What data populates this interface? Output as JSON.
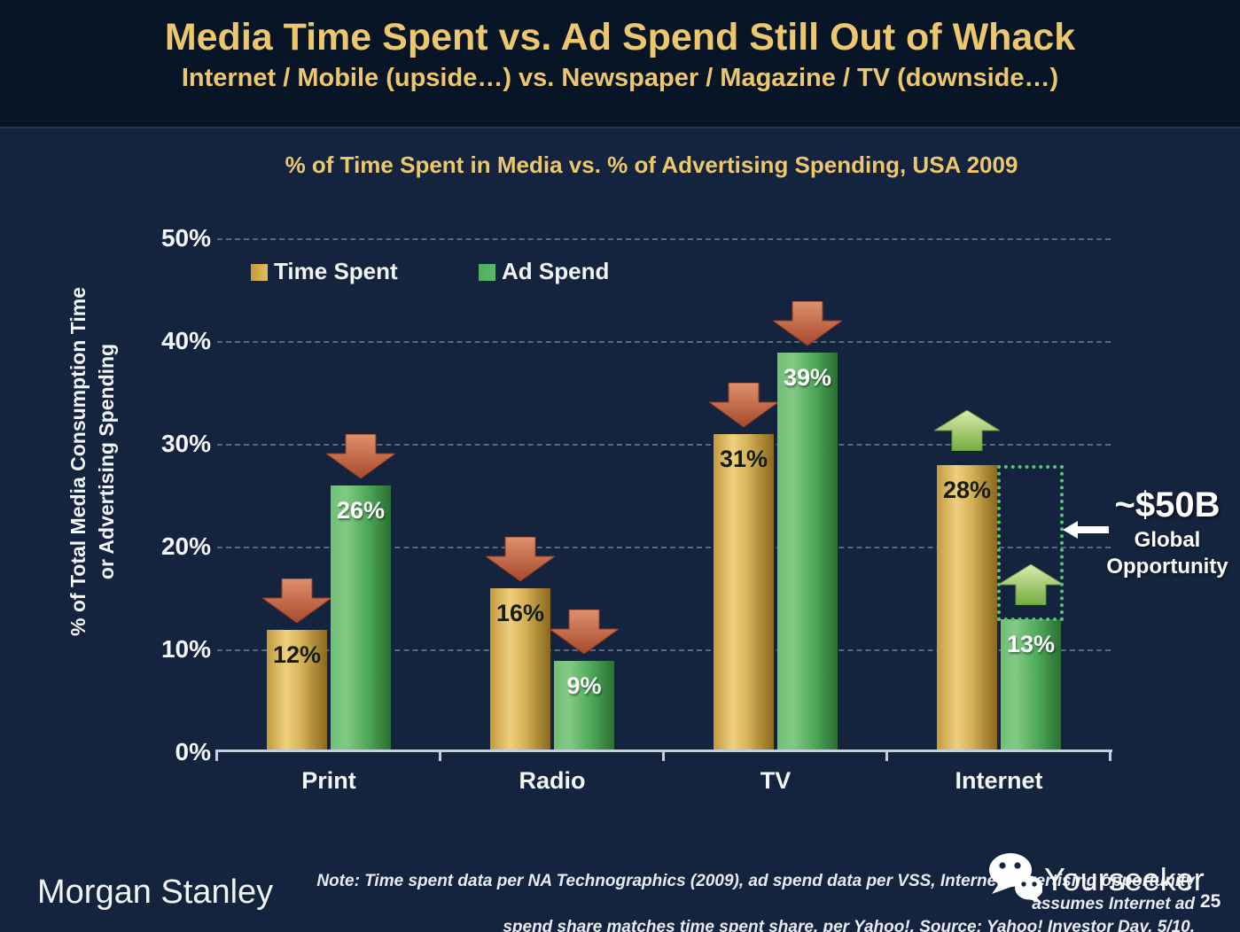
{
  "slide": {
    "title": "Media Time Spent vs. Ad Spend Still Out of Whack",
    "subtitle": "Internet / Mobile (upside…) vs. Newspaper / Magazine / TV (downside…)",
    "brand": "Morgan Stanley",
    "watermark": "Yourseeker",
    "page_number": "25",
    "note_line1": "Note: Time spent data per NA Technographics (2009), ad spend data per VSS, Internet advertising opportunity assumes Internet ad",
    "note_line2": "spend share matches time spent share, per Yahoo!. Source: Yahoo! Investor Day, 5/10."
  },
  "colors": {
    "header_bg": "#081526",
    "body_bg": "#15243e",
    "accent_gold": "#ecc76d",
    "bar_gold_mid": "#edd07e",
    "bar_green_mid": "#4da858",
    "arrow_down_top": "#de906c",
    "arrow_down_bottom": "#a84a2e",
    "arrow_up_top": "#dcebad",
    "arrow_up_bottom": "#74ac40",
    "dotted_box": "#57c373",
    "axis": "#c6cedb",
    "value_dark": "#161d10",
    "value_light": "#ffffff"
  },
  "chart_data": {
    "type": "bar",
    "title": "% of Time Spent in Media vs. % of Advertising Spending, USA 2009",
    "categories": [
      "Print",
      "Radio",
      "TV",
      "Internet"
    ],
    "series": [
      {
        "name": "Time Spent",
        "color_key": "gold",
        "values": [
          12,
          16,
          31,
          28
        ]
      },
      {
        "name": "Ad Spend",
        "color_key": "green",
        "values": [
          26,
          9,
          39,
          13
        ]
      }
    ],
    "value_suffix": "%",
    "ylabel_lines": [
      "% of Total Media Consumption Time",
      "or Advertising Spending"
    ],
    "yticks": [
      0,
      10,
      20,
      30,
      40,
      50
    ],
    "ylim": [
      0,
      50
    ],
    "grid": "horizontal dashed lines at 10%-50%",
    "legend_position": "top-left inside plot",
    "trend_arrows": {
      "Print": "down",
      "Radio": "down",
      "TV": "down",
      "Internet": "up"
    },
    "annotation": {
      "value": "~$50B",
      "label_lines": [
        "Global",
        "Opportunity"
      ],
      "box_category": "Internet",
      "box_from_series": "Time Spent",
      "box_to_series": "Ad Spend"
    }
  }
}
